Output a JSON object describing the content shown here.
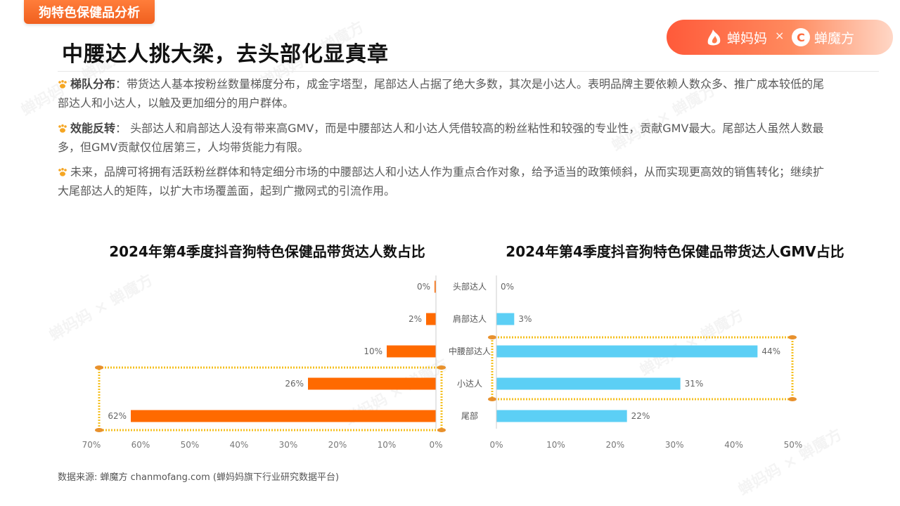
{
  "header": {
    "tag": "狗特色保健品分析",
    "title": "中腰达人挑大梁，去头部化显真章",
    "logo_left": "蝉妈妈",
    "logo_sep": "×",
    "logo_right": "蝉魔方"
  },
  "paragraphs": [
    {
      "lead": "梯队分布",
      "text": "：带货达人基本按粉丝数量梯度分布，成金字塔型，尾部达人占据了绝大多数，其次是小达人。表明品牌主要依赖人数众多、推广成本较低的尾部达人和小达人，以触及更加细分的用户群体。"
    },
    {
      "lead": "效能反转",
      "text": "： 头部达人和肩部达人没有带来高GMV，而是中腰部达人和小达人凭借较高的粉丝粘性和较强的专业性，贡献GMV最大。尾部达人虽然人数最多，但GMV贡献仅位居第三，人均带货能力有限。"
    },
    {
      "lead": "",
      "text": "未来，品牌可将拥有活跃粉丝群体和特定细分市场的中腰部达人和小达人作为重点合作对象，给予适当的政策倾斜，从而实现更高效的销售转化；继续扩大尾部达人的矩阵，以扩大市场覆盖面，起到广撒网式的引流作用。"
    }
  ],
  "colors": {
    "left_bar": "#ff6a00",
    "right_bar": "#5ccff5",
    "highlight": "#f5c021"
  },
  "chart_data": [
    {
      "type": "bar",
      "orientation": "horizontal",
      "title": "2024年第4季度抖音狗特色保健品带货达人数占比",
      "categories": [
        "头部达人",
        "肩部达人",
        "中腰部达人",
        "小达人",
        "尾部"
      ],
      "values": [
        0,
        2,
        10,
        26,
        62
      ],
      "value_labels": [
        "0%",
        "2%",
        "10%",
        "26%",
        "62%"
      ],
      "xlim": [
        0,
        70
      ],
      "x_reversed": true,
      "xticks": [
        "70%",
        "60%",
        "50%",
        "40%",
        "30%",
        "20%",
        "10%",
        "0%"
      ],
      "highlighted_categories": [
        "小达人",
        "尾部"
      ]
    },
    {
      "type": "bar",
      "orientation": "horizontal",
      "title": "2024年第4季度抖音狗特色保健品带货达人GMV占比",
      "categories": [
        "头部达人",
        "肩部达人",
        "中腰部达人",
        "小达人",
        "尾部"
      ],
      "values": [
        0,
        3,
        44,
        31,
        22
      ],
      "value_labels": [
        "0%",
        "3%",
        "44%",
        "31%",
        "22%"
      ],
      "xlim": [
        0,
        50
      ],
      "xticks": [
        "0%",
        "10%",
        "20%",
        "30%",
        "40%",
        "50%"
      ],
      "highlighted_categories": [
        "中腰部达人",
        "小达人"
      ]
    }
  ],
  "source": "数据来源: 蝉魔方 chanmofang.com (蝉妈妈旗下行业研究数据平台)"
}
